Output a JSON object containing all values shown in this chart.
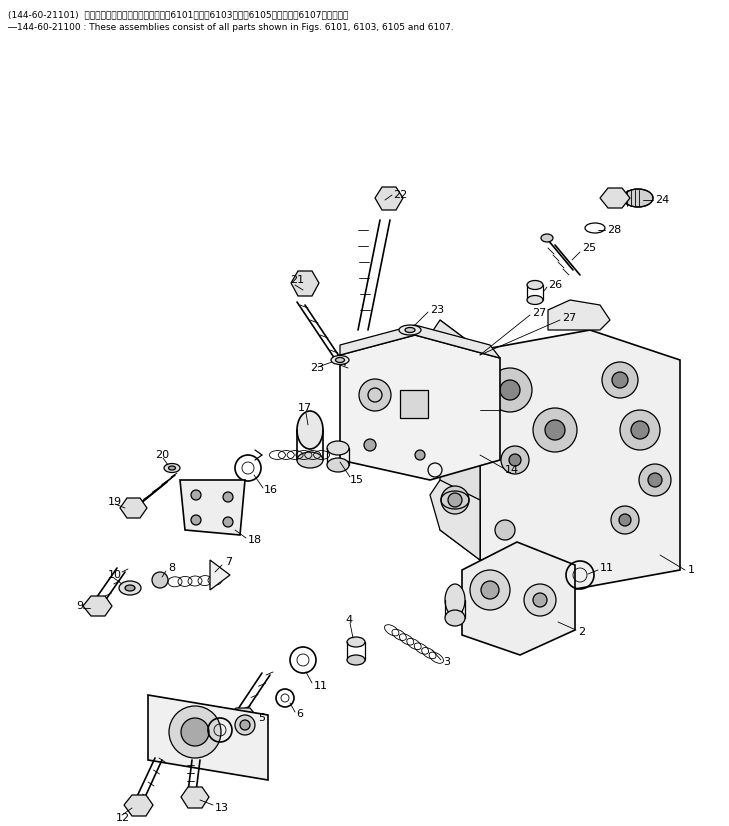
{
  "background_color": "#ffffff",
  "header_line1": "(144-60-21101)  これらのアセンブリの構成部品は図6101図、図6103図、図6105図および図6107図を見よ。",
  "header_line2": "―144-60-21100 : These assemblies consist of all parts shown in Figs. 6101, 6103, 6105 and 6107.",
  "fig_width": 7.29,
  "fig_height": 8.26,
  "dpi": 100,
  "lw_thin": 0.6,
  "lw_med": 0.9,
  "lw_thick": 1.2
}
